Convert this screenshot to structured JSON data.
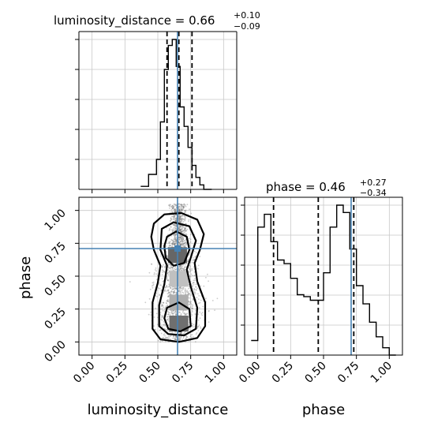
{
  "chart_data": [
    {
      "type": "histogram",
      "panel": "luminosity_distance marginal",
      "title": {
        "param": "luminosity_distance",
        "median": "0.66",
        "plus": "+0.10",
        "minus": "−0.09"
      },
      "xlim": [
        -0.1,
        1.1
      ],
      "bins": [
        0.37,
        0.43,
        0.49,
        0.52,
        0.55,
        0.58,
        0.61,
        0.64,
        0.67,
        0.7,
        0.73,
        0.76,
        0.79,
        0.82,
        0.85,
        0.88,
        0.91
      ],
      "heights": [
        0.02,
        0.1,
        0.2,
        0.45,
        0.8,
        0.96,
        1.0,
        0.82,
        0.55,
        0.42,
        0.28,
        0.16,
        0.08,
        0.03,
        0.0,
        0.0
      ],
      "quantile_lines": [
        0.57,
        0.66,
        0.76
      ],
      "truth": 0.65,
      "grid": true
    },
    {
      "type": "histogram",
      "panel": "phase marginal",
      "title": {
        "param": "phase",
        "median": "0.46",
        "plus": "+0.27",
        "minus": "−0.34"
      },
      "xlim": [
        -0.1,
        1.1
      ],
      "xticks": [
        "0.00",
        "0.25",
        "0.50",
        "0.75",
        "1.00"
      ],
      "xlabel": "phase",
      "bins": [
        -0.05,
        0.0,
        0.05,
        0.1,
        0.15,
        0.2,
        0.25,
        0.3,
        0.35,
        0.4,
        0.45,
        0.5,
        0.55,
        0.6,
        0.65,
        0.7,
        0.75,
        0.8,
        0.85,
        0.9,
        0.95,
        1.0,
        1.05
      ],
      "heights": [
        0.08,
        0.7,
        0.77,
        0.62,
        0.52,
        0.5,
        0.42,
        0.33,
        0.32,
        0.3,
        0.3,
        0.45,
        0.7,
        0.82,
        0.78,
        0.58,
        0.38,
        0.28,
        0.18,
        0.1,
        0.04,
        0.0
      ],
      "quantile_lines": [
        0.12,
        0.46,
        0.73
      ],
      "truth": 0.71,
      "grid": true
    },
    {
      "type": "scatter",
      "panel": "2D posterior",
      "xlabel": "luminosity_distance",
      "ylabel": "phase",
      "xlim": [
        -0.1,
        1.1
      ],
      "ylim": [
        -0.1,
        1.1
      ],
      "xticks": [
        "0.00",
        "0.25",
        "0.50",
        "0.75",
        "1.00"
      ],
      "yticks": [
        "0.00",
        "0.25",
        "0.50",
        "0.75",
        "1.00"
      ],
      "truth": {
        "x": 0.65,
        "y": 0.71
      },
      "density_core": [
        {
          "x": 0.65,
          "y": 0.66,
          "level": 0.85
        },
        {
          "x": 0.66,
          "y": 0.14,
          "level": 0.8
        },
        {
          "x": 0.66,
          "y": 0.3,
          "level": 0.45
        },
        {
          "x": 0.66,
          "y": 0.48,
          "level": 0.35
        }
      ],
      "grid": true,
      "truth_color": "#4682b4"
    }
  ]
}
